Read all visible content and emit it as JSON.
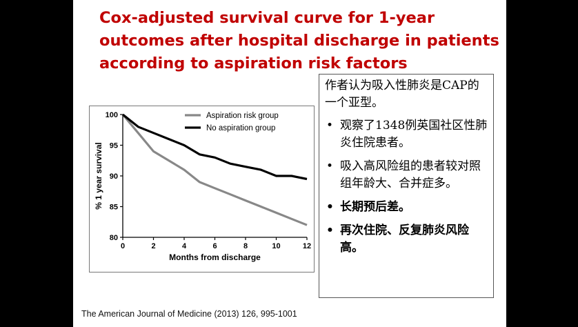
{
  "title_lines": [
    "Cox-adjusted survival curve for 1-year",
    "outcomes after hospital discharge in patients",
    "according to aspiration risk factors"
  ],
  "chart_data": {
    "type": "line",
    "xlabel": "Months from discharge",
    "ylabel": "% 1 year survival",
    "xlim": [
      0,
      12
    ],
    "ylim": [
      80,
      100
    ],
    "xticks": [
      0,
      2,
      4,
      6,
      8,
      10,
      12
    ],
    "yticks": [
      80,
      85,
      90,
      95,
      100
    ],
    "legend_position": "top-right",
    "grid": false,
    "series": [
      {
        "name": "Aspiration risk group",
        "color": "#888888",
        "x": [
          0,
          1,
          2,
          3,
          4,
          5,
          6,
          7,
          8,
          9,
          10,
          11,
          12
        ],
        "y": [
          100,
          97,
          94,
          92.5,
          91,
          89,
          88,
          87,
          86,
          85,
          84,
          83,
          82
        ]
      },
      {
        "name": "No aspiration group",
        "color": "#000000",
        "x": [
          0,
          1,
          2,
          3,
          4,
          5,
          6,
          7,
          8,
          9,
          10,
          11,
          12
        ],
        "y": [
          100,
          98,
          97,
          96,
          95,
          93.5,
          93,
          92,
          91.5,
          91,
          90,
          90,
          89.5
        ]
      }
    ]
  },
  "note": {
    "intro": "作者认为吸入性肺炎是CAP的一个亚型。",
    "bullets": [
      {
        "text": "观察了1348例英国社区性肺炎住院患者。",
        "bold": false
      },
      {
        "text": "吸入高风险组的患者较对照组年龄大、合并症多。",
        "bold": false
      },
      {
        "text": "长期预后差。",
        "bold": true
      },
      {
        "text": "再次住院、反复肺炎风险高。",
        "bold": true
      }
    ]
  },
  "source": "The American Journal of Medicine (2013) 126, 995-1001"
}
